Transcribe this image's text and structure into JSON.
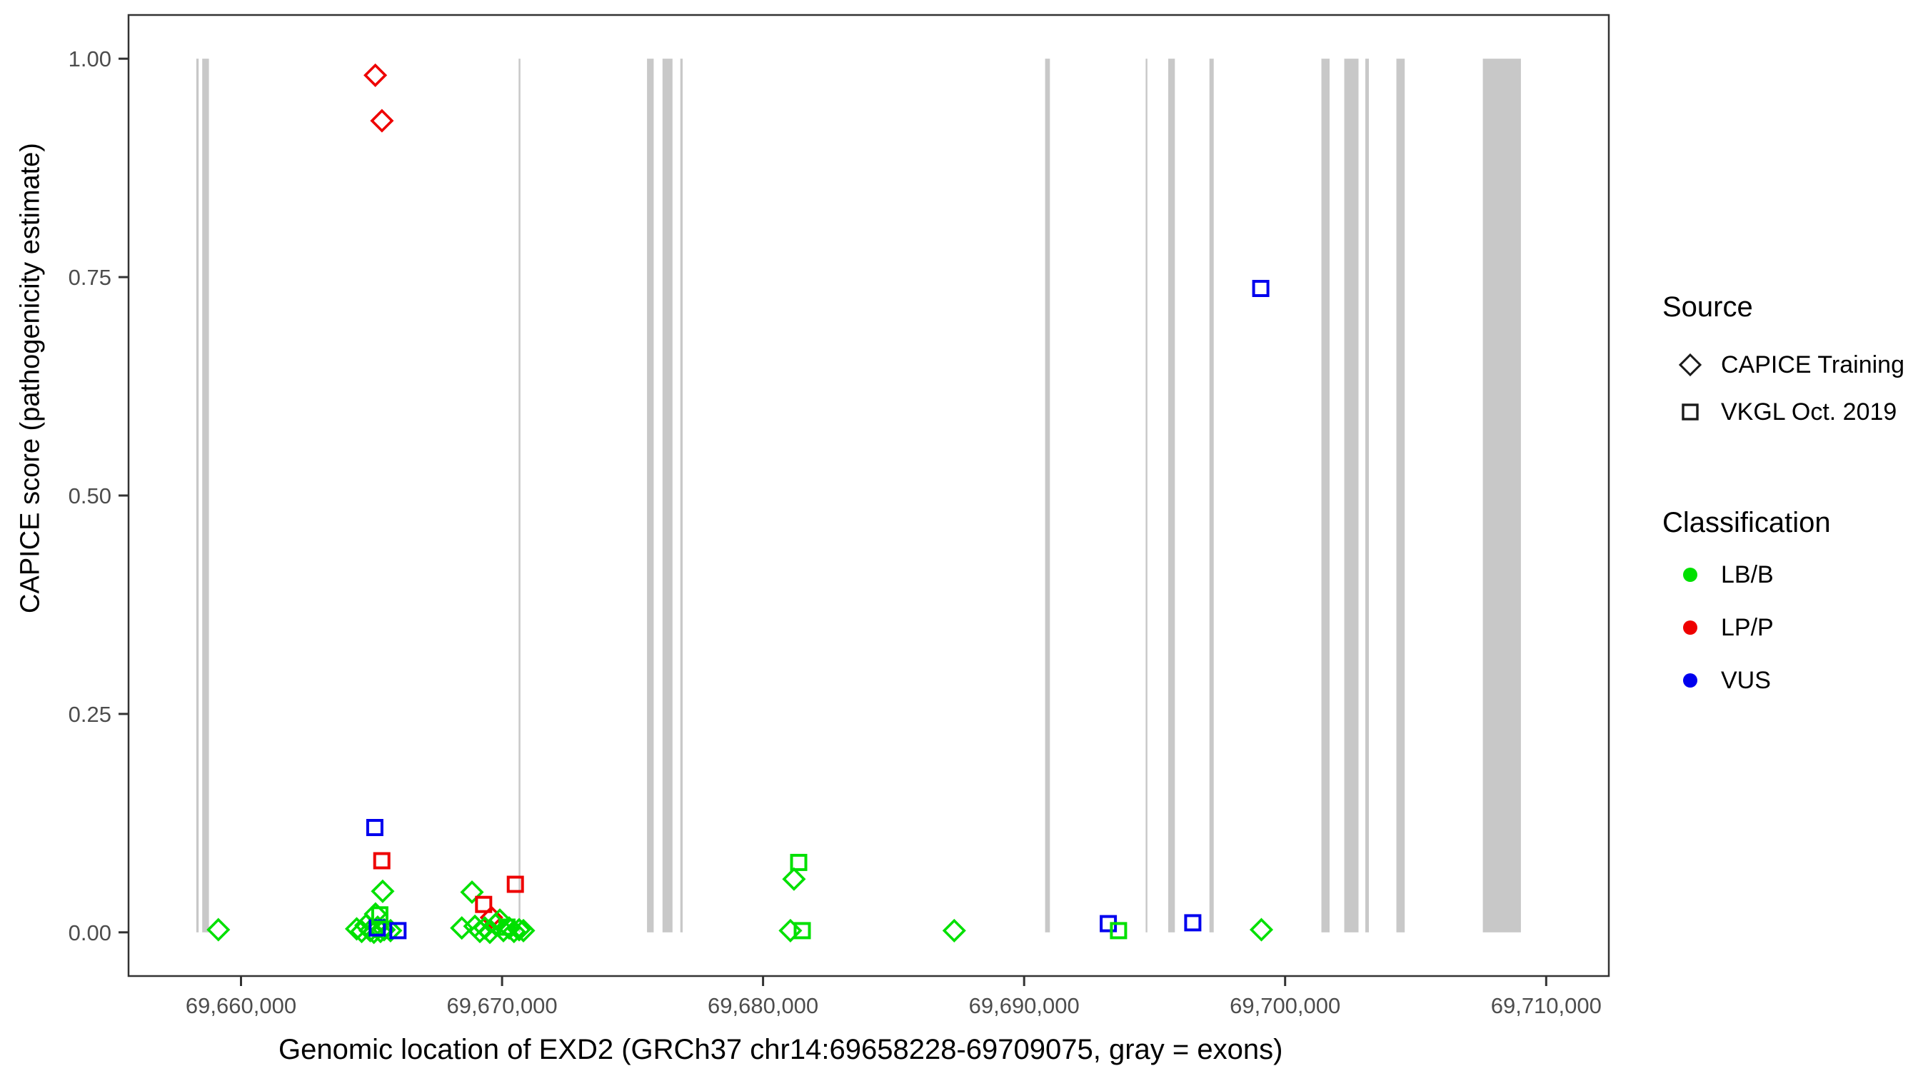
{
  "colors": {
    "lb_b": "#00E000",
    "lp_p": "#EE0000",
    "vus": "#0000EE",
    "exon_gray": "#C8C8C8",
    "panel_border": "#333333",
    "tick_label": "#4D4D4D",
    "axis_title": "#000000"
  },
  "chart_data": {
    "type": "scatter",
    "title": "",
    "xlabel": "Genomic location of EXD2 (GRCh37 chr14:69658228-69709075, gray = exons)",
    "ylabel": "CAPICE score (pathogenicity estimate)",
    "x_domain": [
      69655690,
      69712400
    ],
    "y_domain": [
      -0.05,
      1.05
    ],
    "grid": "off",
    "legend_position": "right",
    "x_ticks": [
      {
        "value": 69660000,
        "label": "69,660,000"
      },
      {
        "value": 69670000,
        "label": "69,670,000"
      },
      {
        "value": 69680000,
        "label": "69,680,000"
      },
      {
        "value": 69690000,
        "label": "69,690,000"
      },
      {
        "value": 69700000,
        "label": "69,700,000"
      },
      {
        "value": 69710000,
        "label": "69,710,000"
      }
    ],
    "y_ticks": [
      {
        "value": 0.0,
        "label": "0.00"
      },
      {
        "value": 0.25,
        "label": "0.25"
      },
      {
        "value": 0.5,
        "label": "0.50"
      },
      {
        "value": 0.75,
        "label": "0.75"
      },
      {
        "value": 1.0,
        "label": "1.00"
      }
    ],
    "class_colors": {
      "LB/B": "#00E000",
      "LP/P": "#EE0000",
      "VUS": "#0000EE"
    },
    "exons_note": "gray vertical bands mark exons, drawn from y=0 to y=1",
    "exons": [
      [
        69658286,
        69658376
      ],
      [
        69658512,
        69658769
      ],
      [
        69670634,
        69670702
      ],
      [
        69675554,
        69675808
      ],
      [
        69676147,
        69676530
      ],
      [
        69676829,
        69676919
      ],
      [
        69690806,
        69690988
      ],
      [
        69694656,
        69694711
      ],
      [
        69695522,
        69695776
      ],
      [
        69697099,
        69697263
      ],
      [
        69701390,
        69701705
      ],
      [
        69702265,
        69702812
      ],
      [
        69703072,
        69703209
      ],
      [
        69704261,
        69704581
      ],
      [
        69707575,
        69709034
      ]
    ],
    "series": [
      {
        "name": "CAPICE Training",
        "marker": "diamond",
        "points": [
          {
            "x": 69665145,
            "y": 0.981,
            "class": "LP/P"
          },
          {
            "x": 69665400,
            "y": 0.929,
            "class": "LP/P"
          },
          {
            "x": 69669596,
            "y": 0.017,
            "class": "LP/P"
          },
          {
            "x": 69659132,
            "y": 0.003,
            "class": "LB/B"
          },
          {
            "x": 69664430,
            "y": 0.004,
            "class": "LB/B"
          },
          {
            "x": 69664622,
            "y": 0.001,
            "class": "LB/B"
          },
          {
            "x": 69664787,
            "y": 0.008,
            "class": "LB/B"
          },
          {
            "x": 69664951,
            "y": 0.002,
            "class": "LB/B"
          },
          {
            "x": 69665090,
            "y": 0.0,
            "class": "LB/B"
          },
          {
            "x": 69665153,
            "y": 0.021,
            "class": "LB/B"
          },
          {
            "x": 69665235,
            "y": 0.006,
            "class": "LB/B"
          },
          {
            "x": 69665345,
            "y": 0.001,
            "class": "LB/B"
          },
          {
            "x": 69665427,
            "y": 0.047,
            "class": "LB/B"
          },
          {
            "x": 69665482,
            "y": 0.003,
            "class": "LB/B"
          },
          {
            "x": 69665728,
            "y": 0.002,
            "class": "LB/B"
          },
          {
            "x": 69668457,
            "y": 0.005,
            "class": "LB/B"
          },
          {
            "x": 69668849,
            "y": 0.046,
            "class": "LB/B"
          },
          {
            "x": 69668960,
            "y": 0.007,
            "class": "LB/B"
          },
          {
            "x": 69669150,
            "y": 0.001,
            "class": "LB/B"
          },
          {
            "x": 69669342,
            "y": 0.005,
            "class": "LB/B"
          },
          {
            "x": 69669533,
            "y": 0.0,
            "class": "LB/B"
          },
          {
            "x": 69669752,
            "y": 0.009,
            "class": "LB/B"
          },
          {
            "x": 69669916,
            "y": 0.014,
            "class": "LB/B"
          },
          {
            "x": 69670053,
            "y": 0.002,
            "class": "LB/B"
          },
          {
            "x": 69670271,
            "y": 0.005,
            "class": "LB/B"
          },
          {
            "x": 69670457,
            "y": 0.001,
            "class": "LB/B"
          },
          {
            "x": 69670655,
            "y": 0.003,
            "class": "LB/B"
          },
          {
            "x": 69670819,
            "y": 0.002,
            "class": "LB/B"
          },
          {
            "x": 69681046,
            "y": 0.002,
            "class": "LB/B"
          },
          {
            "x": 69681183,
            "y": 0.061,
            "class": "LB/B"
          },
          {
            "x": 69687322,
            "y": 0.002,
            "class": "LB/B"
          },
          {
            "x": 69699090,
            "y": 0.003,
            "class": "LB/B"
          }
        ]
      },
      {
        "name": "VKGL Oct. 2019",
        "marker": "square",
        "points": [
          {
            "x": 69665126,
            "y": 0.12,
            "class": "VUS"
          },
          {
            "x": 69665217,
            "y": 0.005,
            "class": "VUS"
          },
          {
            "x": 69665318,
            "y": 0.02,
            "class": "LB/B"
          },
          {
            "x": 69665392,
            "y": 0.082,
            "class": "LP/P"
          },
          {
            "x": 69666011,
            "y": 0.002,
            "class": "VUS"
          },
          {
            "x": 69669295,
            "y": 0.032,
            "class": "LP/P"
          },
          {
            "x": 69670189,
            "y": 0.006,
            "class": "LB/B"
          },
          {
            "x": 69670510,
            "y": 0.055,
            "class": "LP/P"
          },
          {
            "x": 69681364,
            "y": 0.08,
            "class": "LB/B"
          },
          {
            "x": 69681501,
            "y": 0.002,
            "class": "LB/B"
          },
          {
            "x": 69693225,
            "y": 0.01,
            "class": "VUS"
          },
          {
            "x": 69693616,
            "y": 0.002,
            "class": "LB/B"
          },
          {
            "x": 69696462,
            "y": 0.011,
            "class": "VUS"
          },
          {
            "x": 69699066,
            "y": 0.737,
            "class": "VUS"
          }
        ]
      }
    ],
    "legend": {
      "source": {
        "title": "Source",
        "items": [
          {
            "label": "CAPICE Training",
            "marker": "diamond"
          },
          {
            "label": "VKGL Oct. 2019",
            "marker": "square"
          }
        ]
      },
      "classification": {
        "title": "Classification",
        "items": [
          {
            "label": "LB/B",
            "color": "#00E000"
          },
          {
            "label": "LP/P",
            "color": "#EE0000"
          },
          {
            "label": "VUS",
            "color": "#0000EE"
          }
        ]
      }
    }
  }
}
